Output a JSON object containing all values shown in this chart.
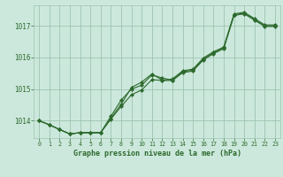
{
  "xlabel": "Graphe pression niveau de la mer (hPa)",
  "hours": [
    0,
    1,
    2,
    3,
    4,
    5,
    6,
    7,
    8,
    9,
    10,
    11,
    12,
    13,
    14,
    15,
    16,
    17,
    18,
    19,
    20,
    21,
    22,
    23
  ],
  "line1": [
    1014.0,
    1013.87,
    1013.72,
    1013.58,
    1013.62,
    1013.62,
    1013.62,
    1014.05,
    1014.45,
    1014.82,
    1014.97,
    1015.3,
    1015.27,
    1015.27,
    1015.52,
    1015.57,
    1015.92,
    1016.12,
    1016.28,
    1017.33,
    1017.38,
    1017.18,
    1016.98,
    1016.98
  ],
  "line2": [
    1014.0,
    1013.87,
    1013.72,
    1013.58,
    1013.62,
    1013.62,
    1013.62,
    1014.08,
    1014.52,
    1015.05,
    1015.22,
    1015.48,
    1015.28,
    1015.32,
    1015.58,
    1015.63,
    1015.98,
    1016.18,
    1016.33,
    1017.38,
    1017.43,
    1017.23,
    1017.03,
    1017.03
  ],
  "line3": [
    1014.0,
    1013.87,
    1013.72,
    1013.58,
    1013.62,
    1013.62,
    1013.62,
    1014.14,
    1014.65,
    1015.0,
    1015.12,
    1015.45,
    1015.35,
    1015.28,
    1015.55,
    1015.6,
    1015.95,
    1016.15,
    1016.3,
    1017.35,
    1017.4,
    1017.2,
    1017.0,
    1017.0
  ],
  "line_color": "#2d6a2d",
  "bg_color": "#cce8dc",
  "grid_color": "#9ec4b0",
  "axis_label_color": "#2d6a2d",
  "tick_color": "#2d6a2d",
  "ylim": [
    1013.45,
    1017.65
  ],
  "yticks": [
    1014,
    1015,
    1016,
    1017
  ],
  "xlim": [
    -0.5,
    23.5
  ],
  "xticks": [
    0,
    1,
    2,
    3,
    4,
    5,
    6,
    7,
    8,
    9,
    10,
    11,
    12,
    13,
    14,
    15,
    16,
    17,
    18,
    19,
    20,
    21,
    22,
    23
  ]
}
